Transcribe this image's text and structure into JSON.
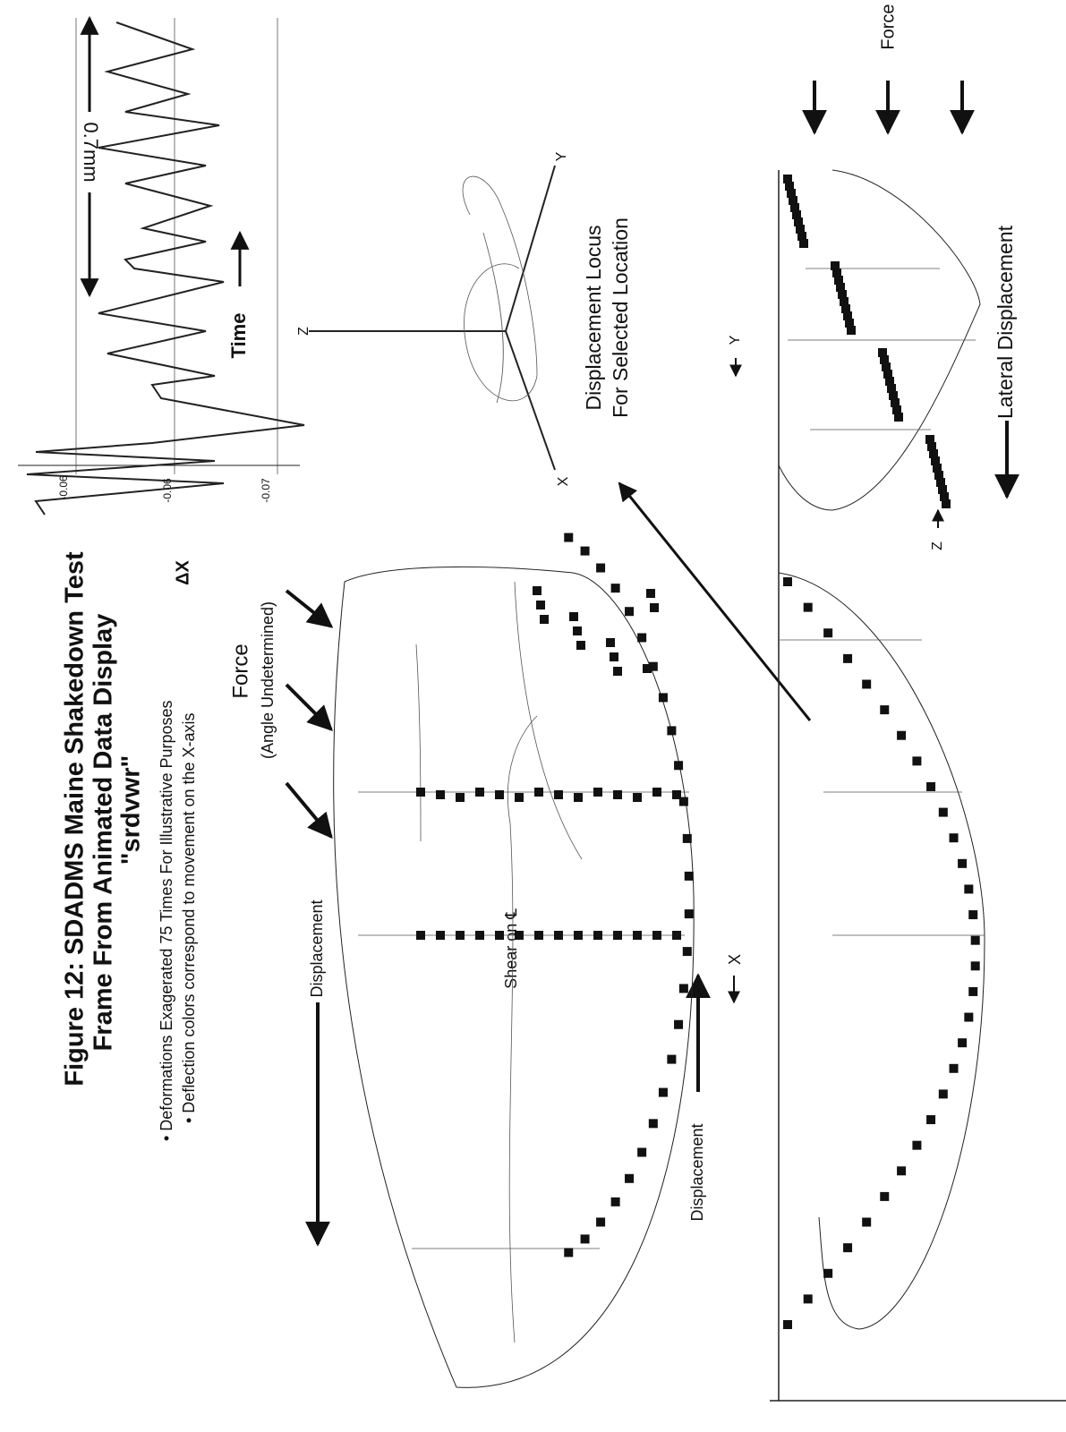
{
  "figure": {
    "title": [
      "Figure 12: SDADMS Maine Shakedown Test",
      "Frame From Animated Data Display",
      "\"srdvwr\""
    ],
    "notes": [
      "• Deformations Exagerated 75 Times  For Illustrative Purposes",
      "• Deflection colors correspond to movement on the X-axis"
    ],
    "force_left": [
      "Force",
      "(Angle Undetermined)"
    ],
    "displacement_top": "Displacement",
    "shear": "Shear on ℄",
    "x_axis": "X",
    "displacement_bottom": "Displacement",
    "plot": {
      "y_label": "ΔX",
      "tick_labels": [
        "-0.06",
        "-0.06",
        "-0.07"
      ],
      "time": "Time",
      "scale": "0.7mm"
    },
    "locus": {
      "axes": [
        "Z",
        "Y",
        "X"
      ],
      "caption": [
        "Displacement Locus",
        "For Selected Location"
      ]
    },
    "side": {
      "force": "Force",
      "y_axis": "Y",
      "z_axis": "Z",
      "lateral": "Lateral Displacement"
    }
  }
}
